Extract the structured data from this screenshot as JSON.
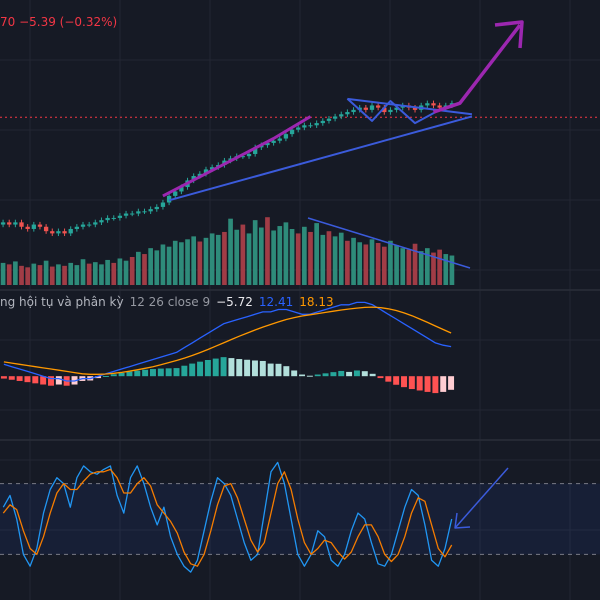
{
  "price_header": {
    "text": "70  −5.39 (−0.32%)"
  },
  "macd_header": {
    "label": "ng hội tụ và phân kỳ",
    "params": "12 26 close 9",
    "histogram_value": "−5.72",
    "macd_value": "12.41",
    "signal_value": "18.13"
  },
  "colors": {
    "background": "#161a25",
    "grid": "#232632",
    "up": "#26a69a",
    "down": "#ef5350",
    "vol_up": "#2e8b7a",
    "vol_down": "#a13c46",
    "macd_line": "#2962ff",
    "signal_line": "#ff9800",
    "stoch_k": "#2196f3",
    "stoch_d": "#f57c00",
    "trend_blue": "#3b5bdb",
    "trend_purple": "#9c27b0",
    "price_line": "#f23645"
  },
  "chart_data": [
    {
      "type": "candlestick",
      "panel": "price",
      "last_price_line": true,
      "annotations": [
        "rising trend arrow",
        "symmetrical triangle",
        "breakout arrow up"
      ],
      "close": [
        48,
        47,
        48,
        46,
        45,
        47,
        46,
        44,
        43,
        44,
        43,
        45,
        46,
        47,
        47,
        48,
        49,
        50,
        50,
        51,
        52,
        52,
        53,
        53,
        54,
        55,
        57,
        60,
        62,
        64,
        67,
        69,
        70,
        72,
        73,
        74,
        76,
        77,
        78,
        78,
        79,
        82,
        83,
        84,
        85,
        86,
        88,
        90,
        91,
        92,
        92,
        93,
        94,
        95,
        96,
        97,
        98,
        99,
        100,
        99,
        101,
        100,
        98,
        99,
        100,
        101,
        100,
        99,
        101,
        102,
        101,
        100,
        101,
        102
      ]
    },
    {
      "type": "bar",
      "panel": "volume",
      "values": [
        30,
        28,
        32,
        26,
        24,
        29,
        27,
        33,
        25,
        28,
        26,
        30,
        27,
        35,
        29,
        31,
        28,
        34,
        30,
        36,
        33,
        38,
        45,
        42,
        50,
        47,
        55,
        52,
        60,
        58,
        62,
        66,
        59,
        64,
        70,
        68,
        72,
        90,
        75,
        82,
        70,
        88,
        78,
        92,
        74,
        80,
        85,
        76,
        70,
        79,
        72,
        84,
        68,
        73,
        66,
        71,
        60,
        64,
        58,
        55,
        62,
        57,
        52,
        60,
        54,
        50,
        48,
        56,
        46,
        50,
        44,
        48,
        42,
        40
      ],
      "up": [
        1,
        0,
        1,
        0,
        0,
        1,
        0,
        1,
        0,
        1,
        0,
        1,
        1,
        1,
        0,
        1,
        1,
        1,
        0,
        1,
        1,
        0,
        1,
        0,
        1,
        1,
        1,
        1,
        1,
        1,
        1,
        1,
        0,
        1,
        1,
        1,
        0,
        1,
        1,
        0,
        1,
        1,
        1,
        0,
        1,
        1,
        1,
        1,
        0,
        1,
        0,
        1,
        1,
        0,
        1,
        1,
        0,
        1,
        1,
        0,
        1,
        0,
        0,
        1,
        1,
        1,
        0,
        0,
        1,
        1,
        0,
        0,
        1,
        1
      ]
    },
    {
      "type": "line",
      "panel": "macd",
      "series": [
        {
          "name": "MACD",
          "values": [
            5,
            4,
            3,
            2,
            1,
            0,
            -1,
            -1,
            -2,
            -2,
            -1,
            -1,
            0,
            1,
            2,
            3,
            4,
            5,
            6,
            7,
            8,
            9,
            10,
            12,
            14,
            16,
            18,
            20,
            22,
            23,
            24,
            25,
            26,
            27,
            27,
            28,
            28,
            27,
            26,
            26,
            27,
            28,
            29,
            30,
            30,
            31,
            31,
            30,
            28,
            26,
            24,
            22,
            20,
            18,
            16,
            14,
            13,
            12.41
          ]
        },
        {
          "name": "Signal",
          "values": [
            6,
            5.5,
            5,
            4.5,
            4,
            3.5,
            3,
            2.5,
            2,
            1.5,
            1,
            0.8,
            0.8,
            0.9,
            1.2,
            1.6,
            2.1,
            2.7,
            3.3,
            4,
            4.8,
            5.7,
            6.6,
            7.6,
            8.7,
            9.9,
            11.2,
            12.6,
            14,
            15.4,
            16.8,
            18.1,
            19.4,
            20.6,
            21.7,
            22.8,
            23.8,
            24.6,
            25.3,
            25.8,
            26.3,
            26.8,
            27.3,
            27.8,
            28.2,
            28.6,
            28.9,
            29,
            28.8,
            28.3,
            27.6,
            26.6,
            25.4,
            24,
            22.6,
            21.1,
            19.6,
            18.13
          ]
        },
        {
          "name": "Histogram",
          "values": [
            -1,
            -1.5,
            -2,
            -2.5,
            -3,
            -3.5,
            -4,
            -3.5,
            -4,
            -3.5,
            -2,
            -1.8,
            -0.8,
            0.1,
            0.8,
            1.4,
            1.9,
            2.3,
            2.7,
            3,
            3.2,
            3.3,
            3.4,
            4.4,
            5.3,
            6.1,
            6.8,
            7.4,
            8,
            7.6,
            7.2,
            6.9,
            6.6,
            6.4,
            5.3,
            5.2,
            4.2,
            2.4,
            0.7,
            0.2,
            0.7,
            1.2,
            1.7,
            2.2,
            1.8,
            2.4,
            2.1,
            1,
            -0.8,
            -2.3,
            -3.6,
            -4.6,
            -5.4,
            -6,
            -6.6,
            -7.1,
            -6.6,
            -5.72
          ]
        }
      ]
    },
    {
      "type": "line",
      "panel": "stochastic",
      "ylim": [
        0,
        100
      ],
      "bands": [
        80,
        20
      ],
      "series": [
        {
          "name": "%K",
          "values": [
            60,
            70,
            50,
            20,
            10,
            25,
            55,
            75,
            85,
            80,
            60,
            85,
            95,
            90,
            88,
            92,
            95,
            70,
            55,
            85,
            95,
            80,
            60,
            45,
            60,
            35,
            20,
            10,
            5,
            15,
            40,
            65,
            85,
            80,
            70,
            50,
            30,
            15,
            20,
            55,
            90,
            98,
            80,
            50,
            20,
            10,
            20,
            40,
            35,
            15,
            10,
            20,
            40,
            55,
            50,
            30,
            12,
            10,
            20,
            40,
            60,
            75,
            70,
            45,
            15,
            10,
            25,
            50
          ]
        },
        {
          "name": "%D",
          "values": [
            55,
            62,
            58,
            40,
            25,
            20,
            35,
            55,
            72,
            80,
            75,
            75,
            82,
            88,
            90,
            90,
            92,
            85,
            72,
            72,
            80,
            85,
            78,
            62,
            55,
            48,
            38,
            22,
            12,
            10,
            20,
            40,
            62,
            78,
            80,
            68,
            50,
            32,
            22,
            30,
            55,
            80,
            90,
            75,
            50,
            30,
            20,
            25,
            32,
            30,
            22,
            16,
            22,
            35,
            45,
            45,
            35,
            20,
            14,
            20,
            35,
            55,
            68,
            65,
            45,
            25,
            18,
            28
          ]
        }
      ]
    }
  ]
}
